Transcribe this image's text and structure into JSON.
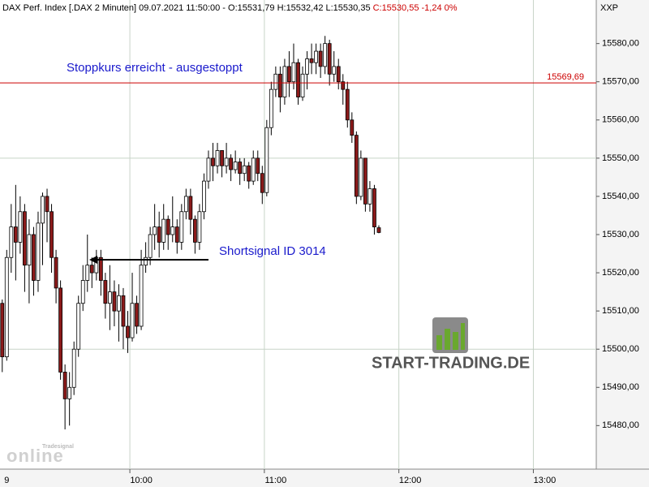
{
  "chart_data": {
    "type": "candlestick",
    "title": "DAX Perf. Index [.DAX  2 Minuten] 09.07.2021 11:50:00 - O:15531,79 H:15532,42 L:15530,35",
    "title_close": "C:15530,55 -1,24 0%",
    "axis_corner_label": "XXP",
    "x": [
      "08:58",
      "09:00",
      "09:02",
      "09:04",
      "09:06",
      "09:08",
      "09:10",
      "09:12",
      "09:14",
      "09:16",
      "09:18",
      "09:20",
      "09:22",
      "09:24",
      "09:26",
      "09:28",
      "09:30",
      "09:32",
      "09:34",
      "09:36",
      "09:38",
      "09:40",
      "09:42",
      "09:44",
      "09:46",
      "09:48",
      "09:50",
      "09:52",
      "09:54",
      "09:56",
      "09:58",
      "10:00",
      "10:02",
      "10:04",
      "10:06",
      "10:08",
      "10:10",
      "10:12",
      "10:14",
      "10:16",
      "10:18",
      "10:20",
      "10:22",
      "10:24",
      "10:26",
      "10:28",
      "10:30",
      "10:32",
      "10:34",
      "10:36",
      "10:38",
      "10:40",
      "10:42",
      "10:44",
      "10:46",
      "10:48",
      "10:50",
      "10:52",
      "10:54",
      "10:56",
      "10:58",
      "11:00",
      "11:02",
      "11:04",
      "11:06",
      "11:08",
      "11:10",
      "11:12",
      "11:14",
      "11:16",
      "11:18",
      "11:20",
      "11:22",
      "11:24",
      "11:26",
      "11:28",
      "11:30",
      "11:32",
      "11:34",
      "11:36",
      "11:38",
      "11:40",
      "11:42",
      "11:44",
      "11:46"
    ],
    "series": {
      "open": [
        15512,
        15498,
        15524,
        15532,
        15528,
        15536,
        15522,
        15530,
        15518,
        15533,
        15540,
        15536,
        15524,
        15516,
        15494,
        15487,
        15490,
        15500,
        15512,
        15518,
        15522,
        15520,
        15524,
        15518,
        15512,
        15515,
        15510,
        15514,
        15506,
        15503,
        15512,
        15506,
        15522,
        15524,
        15530,
        15532,
        15528,
        15534,
        15530,
        15532,
        15528,
        15536,
        15540,
        15534,
        15528,
        15536,
        15544,
        15550,
        15548,
        15552,
        15548,
        15550,
        15547,
        15549,
        15546,
        15548,
        15544,
        15550,
        15546,
        15541,
        15558,
        15568,
        15572,
        15566,
        15574,
        15570,
        15575,
        15566,
        15572,
        15576,
        15575,
        15578,
        15574,
        15580,
        15572,
        15574,
        15570,
        15568,
        15560,
        15556,
        15540,
        15550,
        15538,
        15542,
        15531.79
      ],
      "high": [
        15513,
        15526,
        15538,
        15543,
        15540,
        15538,
        15534,
        15532,
        15536,
        15541,
        15542,
        15538,
        15526,
        15518,
        15496,
        15494,
        15502,
        15514,
        15522,
        15530,
        15524,
        15526,
        15526,
        15520,
        15522,
        15518,
        15517,
        15516,
        15510,
        15520,
        15514,
        15526,
        15528,
        15532,
        15538,
        15536,
        15538,
        15535,
        15540,
        15534,
        15538,
        15542,
        15542,
        15535,
        15538,
        15546,
        15552,
        15554,
        15554,
        15552,
        15554,
        15551,
        15552,
        15550,
        15550,
        15549,
        15552,
        15552,
        15548,
        15560,
        15570,
        15574,
        15574,
        15576,
        15578,
        15580,
        15576,
        15574,
        15578,
        15580,
        15580,
        15580,
        15582,
        15581,
        15578,
        15576,
        15572,
        15570,
        15562,
        15557,
        15552,
        15550,
        15544,
        15543,
        15532.42
      ],
      "low": [
        15494,
        15497,
        15520,
        15518,
        15525,
        15515,
        15512,
        15514,
        15515,
        15522,
        15528,
        15520,
        15512,
        15492,
        15479,
        15480,
        15488,
        15498,
        15510,
        15515,
        15516,
        15518,
        15514,
        15508,
        15505,
        15506,
        15502,
        15500,
        15499,
        15502,
        15504,
        15505,
        15520,
        15522,
        15526,
        15524,
        15526,
        15526,
        15528,
        15525,
        15526,
        15534,
        15530,
        15525,
        15526,
        15534,
        15542,
        15544,
        15546,
        15545,
        15546,
        15544,
        15546,
        15543,
        15544,
        15542,
        15543,
        15544,
        15538,
        15540,
        15556,
        15566,
        15562,
        15564,
        15566,
        15568,
        15564,
        15565,
        15568,
        15572,
        15572,
        15571,
        15572,
        15569,
        15570,
        15568,
        15564,
        15558,
        15554,
        15538,
        15539,
        15536,
        15536,
        15530,
        15530.35
      ],
      "close": [
        15498,
        15524,
        15532,
        15528,
        15536,
        15522,
        15530,
        15518,
        15533,
        15540,
        15536,
        15524,
        15516,
        15494,
        15487,
        15490,
        15500,
        15512,
        15518,
        15522,
        15520,
        15524,
        15518,
        15512,
        15515,
        15510,
        15514,
        15506,
        15503,
        15512,
        15506,
        15522,
        15524,
        15530,
        15532,
        15528,
        15534,
        15530,
        15532,
        15528,
        15536,
        15540,
        15534,
        15528,
        15536,
        15544,
        15550,
        15548,
        15552,
        15548,
        15550,
        15547,
        15549,
        15546,
        15548,
        15544,
        15550,
        15546,
        15541,
        15558,
        15568,
        15572,
        15566,
        15574,
        15570,
        15575,
        15566,
        15572,
        15576,
        15575,
        15578,
        15574,
        15580,
        15572,
        15574,
        15570,
        15568,
        15560,
        15556,
        15540,
        15550,
        15538,
        15542,
        15532,
        15530.55
      ]
    },
    "up_color": "#ffffff",
    "down_color": "#8b1a1a",
    "xlim": [
      "08:57",
      "13:23"
    ],
    "xticks": [
      {
        "value": "09:00",
        "label": "9"
      },
      {
        "value": "10:00",
        "label": "10:00"
      },
      {
        "value": "11:00",
        "label": "11:00"
      },
      {
        "value": "12:00",
        "label": "12:00"
      },
      {
        "value": "13:00",
        "label": "13:00"
      }
    ],
    "ylim": [
      15468.6,
      15591.4
    ],
    "yticks": [
      {
        "value": 15480,
        "label": "15480,00"
      },
      {
        "value": 15490,
        "label": "15490,00"
      },
      {
        "value": 15500,
        "label": "15500,00"
      },
      {
        "value": 15510,
        "label": "15510,00"
      },
      {
        "value": 15520,
        "label": "15520,00"
      },
      {
        "value": 15530,
        "label": "15530,00"
      },
      {
        "value": 15540,
        "label": "15540,00"
      },
      {
        "value": 15550,
        "label": "15550,00"
      },
      {
        "value": 15560,
        "label": "15560,00"
      },
      {
        "value": 15570,
        "label": "15570,00"
      },
      {
        "value": 15580,
        "label": "15580,00"
      }
    ],
    "ygrid": [
      15500,
      15550
    ],
    "stop_line": {
      "value": 15569.69,
      "label": "15569,69",
      "color": "#cc0000"
    },
    "annotations": [
      "Stoppkurs erreicht - ausgestoppt",
      "Shortsignal ID 3014"
    ],
    "logo_text": "START-TRADING.DE",
    "watermark": {
      "small": "Tradesignal",
      "big": "online"
    }
  }
}
